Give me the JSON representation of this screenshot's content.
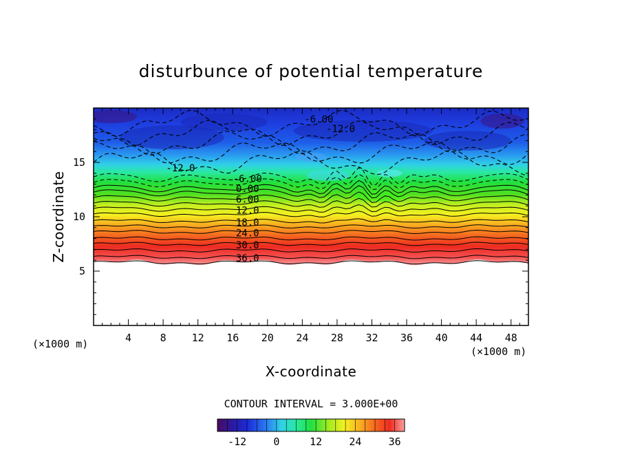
{
  "chart_data": {
    "type": "heatmap",
    "title": "disturbunce of potential temperature",
    "xlabel": "X-coordinate",
    "ylabel": "Z-coordinate",
    "x_unit": "(×1000 m)",
    "y_unit": "(×1000 m)",
    "xlim": [
      0,
      50
    ],
    "ylim": [
      0,
      20
    ],
    "x_ticks": [
      4,
      8,
      12,
      16,
      20,
      24,
      28,
      32,
      36,
      40,
      44,
      48
    ],
    "y_ticks": [
      5,
      10,
      15
    ],
    "contour_interval_text": "CONTOUR INTERVAL = 3.000E+00",
    "contour_levels": [
      -12,
      -9,
      -6,
      -3,
      0,
      3,
      6,
      9,
      12,
      15,
      18,
      21,
      24,
      27,
      30,
      33,
      36,
      39
    ],
    "contour_rows": [
      {
        "level": -6,
        "z": 13.6
      },
      {
        "level": -3,
        "z": 13.1
      },
      {
        "level": 0,
        "z": 12.6
      },
      {
        "level": 3,
        "z": 12.2
      },
      {
        "level": 6,
        "z": 11.7
      },
      {
        "level": 9,
        "z": 11.2
      },
      {
        "level": 12,
        "z": 10.7
      },
      {
        "level": 15,
        "z": 10.2
      },
      {
        "level": 18,
        "z": 9.6
      },
      {
        "level": 21,
        "z": 9.1
      },
      {
        "level": 24,
        "z": 8.6
      },
      {
        "level": 27,
        "z": 8.0
      },
      {
        "level": 30,
        "z": 7.5
      },
      {
        "level": 33,
        "z": 6.9
      },
      {
        "level": 36,
        "z": 6.3
      },
      {
        "level": 39,
        "z": 5.8
      }
    ],
    "contour_labels": [
      {
        "text": "-6.00",
        "x": 25.9,
        "z": 19.0
      },
      {
        "text": "-12.0",
        "x": 28.4,
        "z": 18.1
      },
      {
        "text": "-12.0",
        "x": 10.0,
        "z": 14.5
      },
      {
        "text": "-6.00",
        "x": 17.7,
        "z": 13.5
      },
      {
        "text": "0.00",
        "x": 17.7,
        "z": 12.6
      },
      {
        "text": "6.00",
        "x": 17.7,
        "z": 11.6
      },
      {
        "text": "12.0",
        "x": 17.7,
        "z": 10.6
      },
      {
        "text": "18.0",
        "x": 17.7,
        "z": 9.5
      },
      {
        "text": "24.0",
        "x": 17.7,
        "z": 8.5
      },
      {
        "text": "30.0",
        "x": 17.7,
        "z": 7.4
      },
      {
        "text": "36.0",
        "x": 17.7,
        "z": 6.2
      }
    ],
    "colorbar": {
      "min": -18,
      "max": 39,
      "tick_values": [
        -12,
        0,
        12,
        24,
        36
      ],
      "tick_labels": [
        "-12",
        "0",
        "12",
        "24",
        "36"
      ]
    },
    "data_bottom_z": 5.8,
    "grid": false
  }
}
